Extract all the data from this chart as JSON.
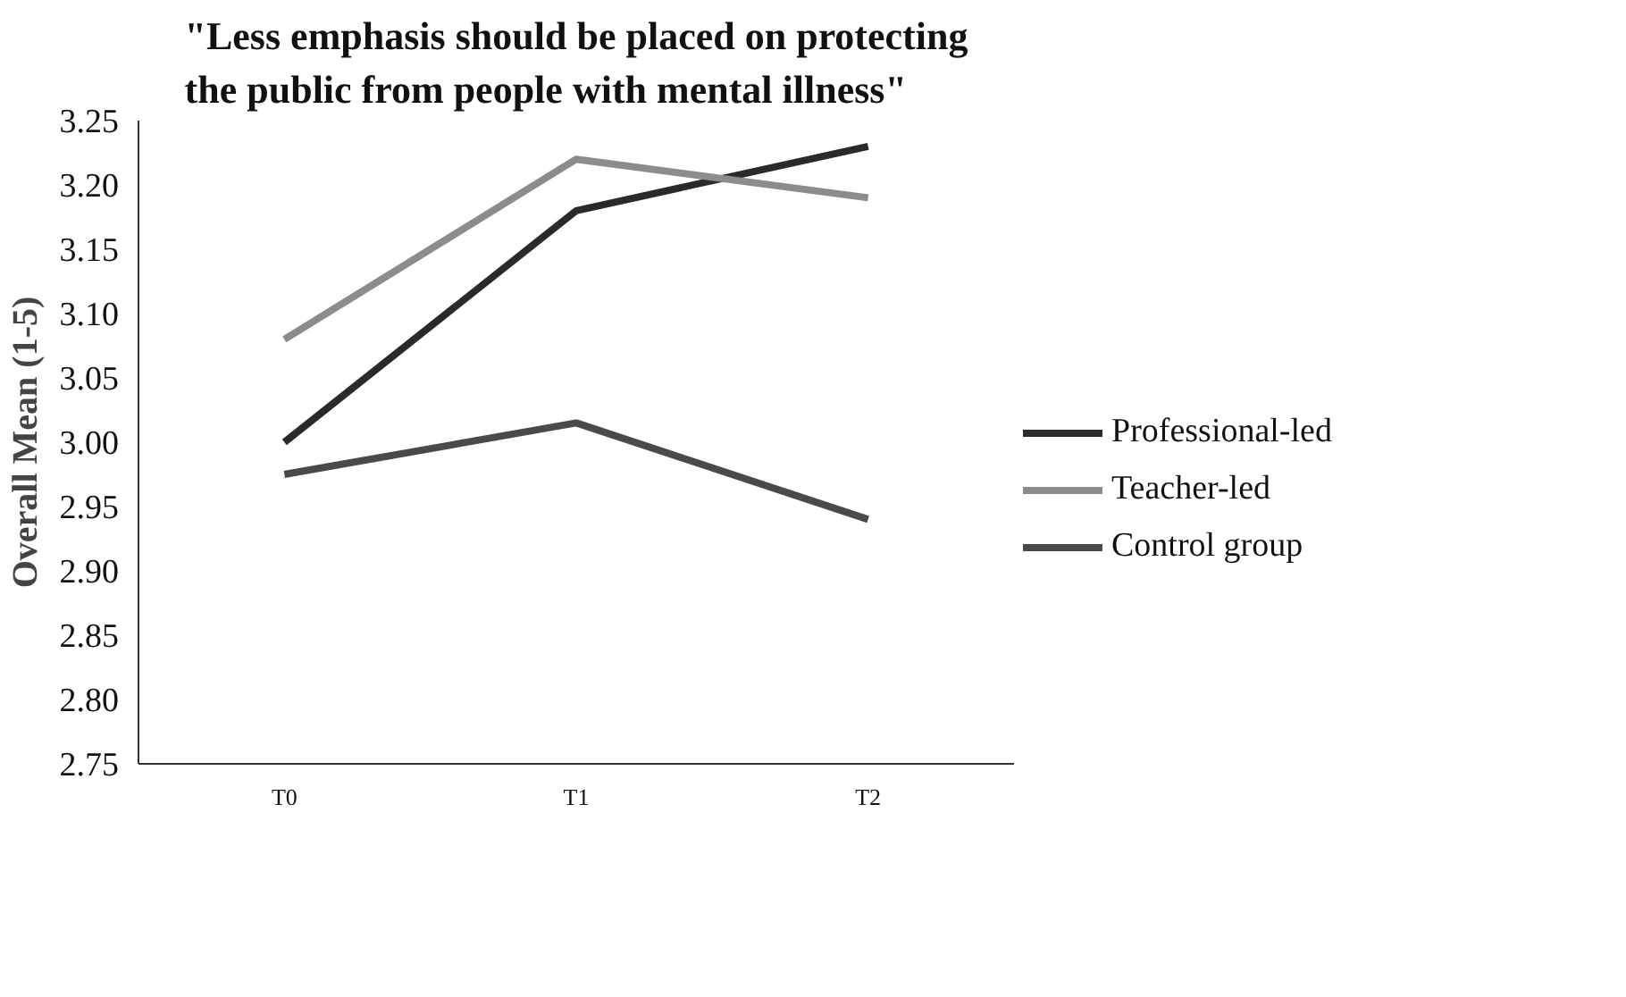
{
  "chart_data": {
    "type": "line",
    "title": "\"Less emphasis should be placed on protecting the public from people with mental illness\"",
    "ylabel": "Overall Mean (1-5)",
    "categories": [
      "T0",
      "T1",
      "T2"
    ],
    "series": [
      {
        "name": "Professional-led",
        "color": "#2a2a2a",
        "values": [
          3.0,
          3.18,
          3.23
        ]
      },
      {
        "name": "Teacher-led",
        "color": "#8c8c8c",
        "values": [
          3.08,
          3.22,
          3.19
        ]
      },
      {
        "name": "Control group",
        "color": "#4a4a4a",
        "values": [
          2.975,
          3.015,
          2.94
        ]
      }
    ],
    "ylim": [
      2.75,
      3.25
    ],
    "yticks": [
      {
        "value": 2.75,
        "label": "2.75"
      },
      {
        "value": 2.8,
        "label": "2.80"
      },
      {
        "value": 2.85,
        "label": "2.85"
      },
      {
        "value": 2.9,
        "label": "2.90"
      },
      {
        "value": 2.95,
        "label": "2.95"
      },
      {
        "value": 3.0,
        "label": "3.00"
      },
      {
        "value": 3.05,
        "label": "3.05"
      },
      {
        "value": 3.1,
        "label": "3.10"
      },
      {
        "value": 3.15,
        "label": "3.15"
      },
      {
        "value": 3.2,
        "label": "3.20"
      },
      {
        "value": 3.25,
        "label": "3.25"
      }
    ],
    "grid": false,
    "legend": "right",
    "marker": "none",
    "line_style": "solid"
  }
}
